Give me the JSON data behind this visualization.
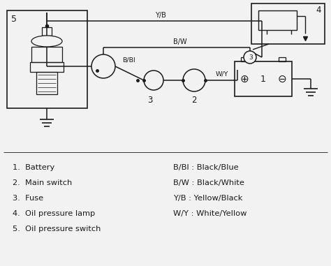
{
  "bg_color": "#f2f2f2",
  "line_color": "#1a1a1a",
  "legend_left": [
    "1.  Battery",
    "2.  Main switch",
    "3.  Fuse",
    "4.  Oil pressure lamp",
    "5.  Oil pressure switch"
  ],
  "legend_right": [
    "B/Bl : Black/Blue",
    "B/W : Black/White",
    "Y/B : Yellow/Black",
    "W/Y : White/Yellow"
  ]
}
